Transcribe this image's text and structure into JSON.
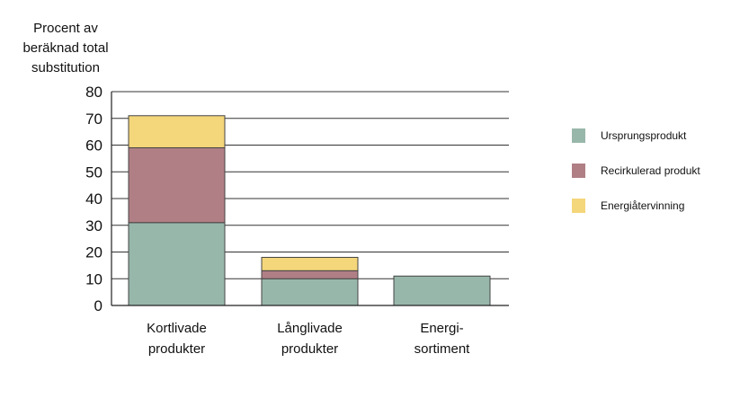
{
  "chart_data": {
    "type": "bar",
    "stacked": true,
    "ylabel": [
      "Procent av",
      "beräknad total",
      "substitution"
    ],
    "ylim": [
      0,
      80
    ],
    "yticks": [
      0,
      10,
      20,
      30,
      40,
      50,
      60,
      70,
      80
    ],
    "grid": true,
    "legend_position": "right",
    "categories": [
      [
        "Kortlivade",
        "produkter"
      ],
      [
        "Långlivade",
        "produkter"
      ],
      [
        "Energi-",
        "sortiment"
      ]
    ],
    "series": [
      {
        "name": "Ursprungsprodukt",
        "color": "#98b7ab",
        "values": [
          31,
          10,
          11
        ]
      },
      {
        "name": "Recirkulerad produkt",
        "color": "#b07f86",
        "values": [
          28,
          3,
          0
        ]
      },
      {
        "name": "Energiåtervinning",
        "color": "#f4d67b",
        "values": [
          12,
          5,
          0
        ]
      }
    ]
  }
}
